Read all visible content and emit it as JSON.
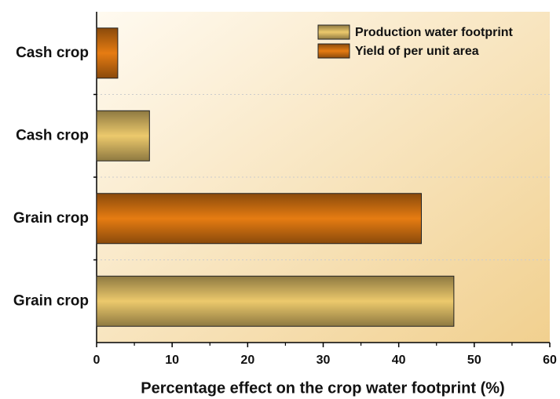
{
  "chart_data": {
    "type": "barh",
    "xlabel": "Percentage effect on the crop water footprint (%)",
    "categories": [
      "Grain crop",
      "Grain crop",
      "Cash crop",
      "Cash crop"
    ],
    "series": [
      {
        "name": "Production water footprint",
        "color": "#ecc96c",
        "values": [
          47.3,
          null,
          7,
          null
        ]
      },
      {
        "name": "Yield of per unit area",
        "color": "#e67c12",
        "values": [
          null,
          43,
          null,
          2.8
        ]
      }
    ],
    "xlim": [
      0,
      60
    ],
    "xticks": [
      0,
      10,
      20,
      30,
      40,
      50,
      60
    ],
    "legend": "upper right"
  }
}
